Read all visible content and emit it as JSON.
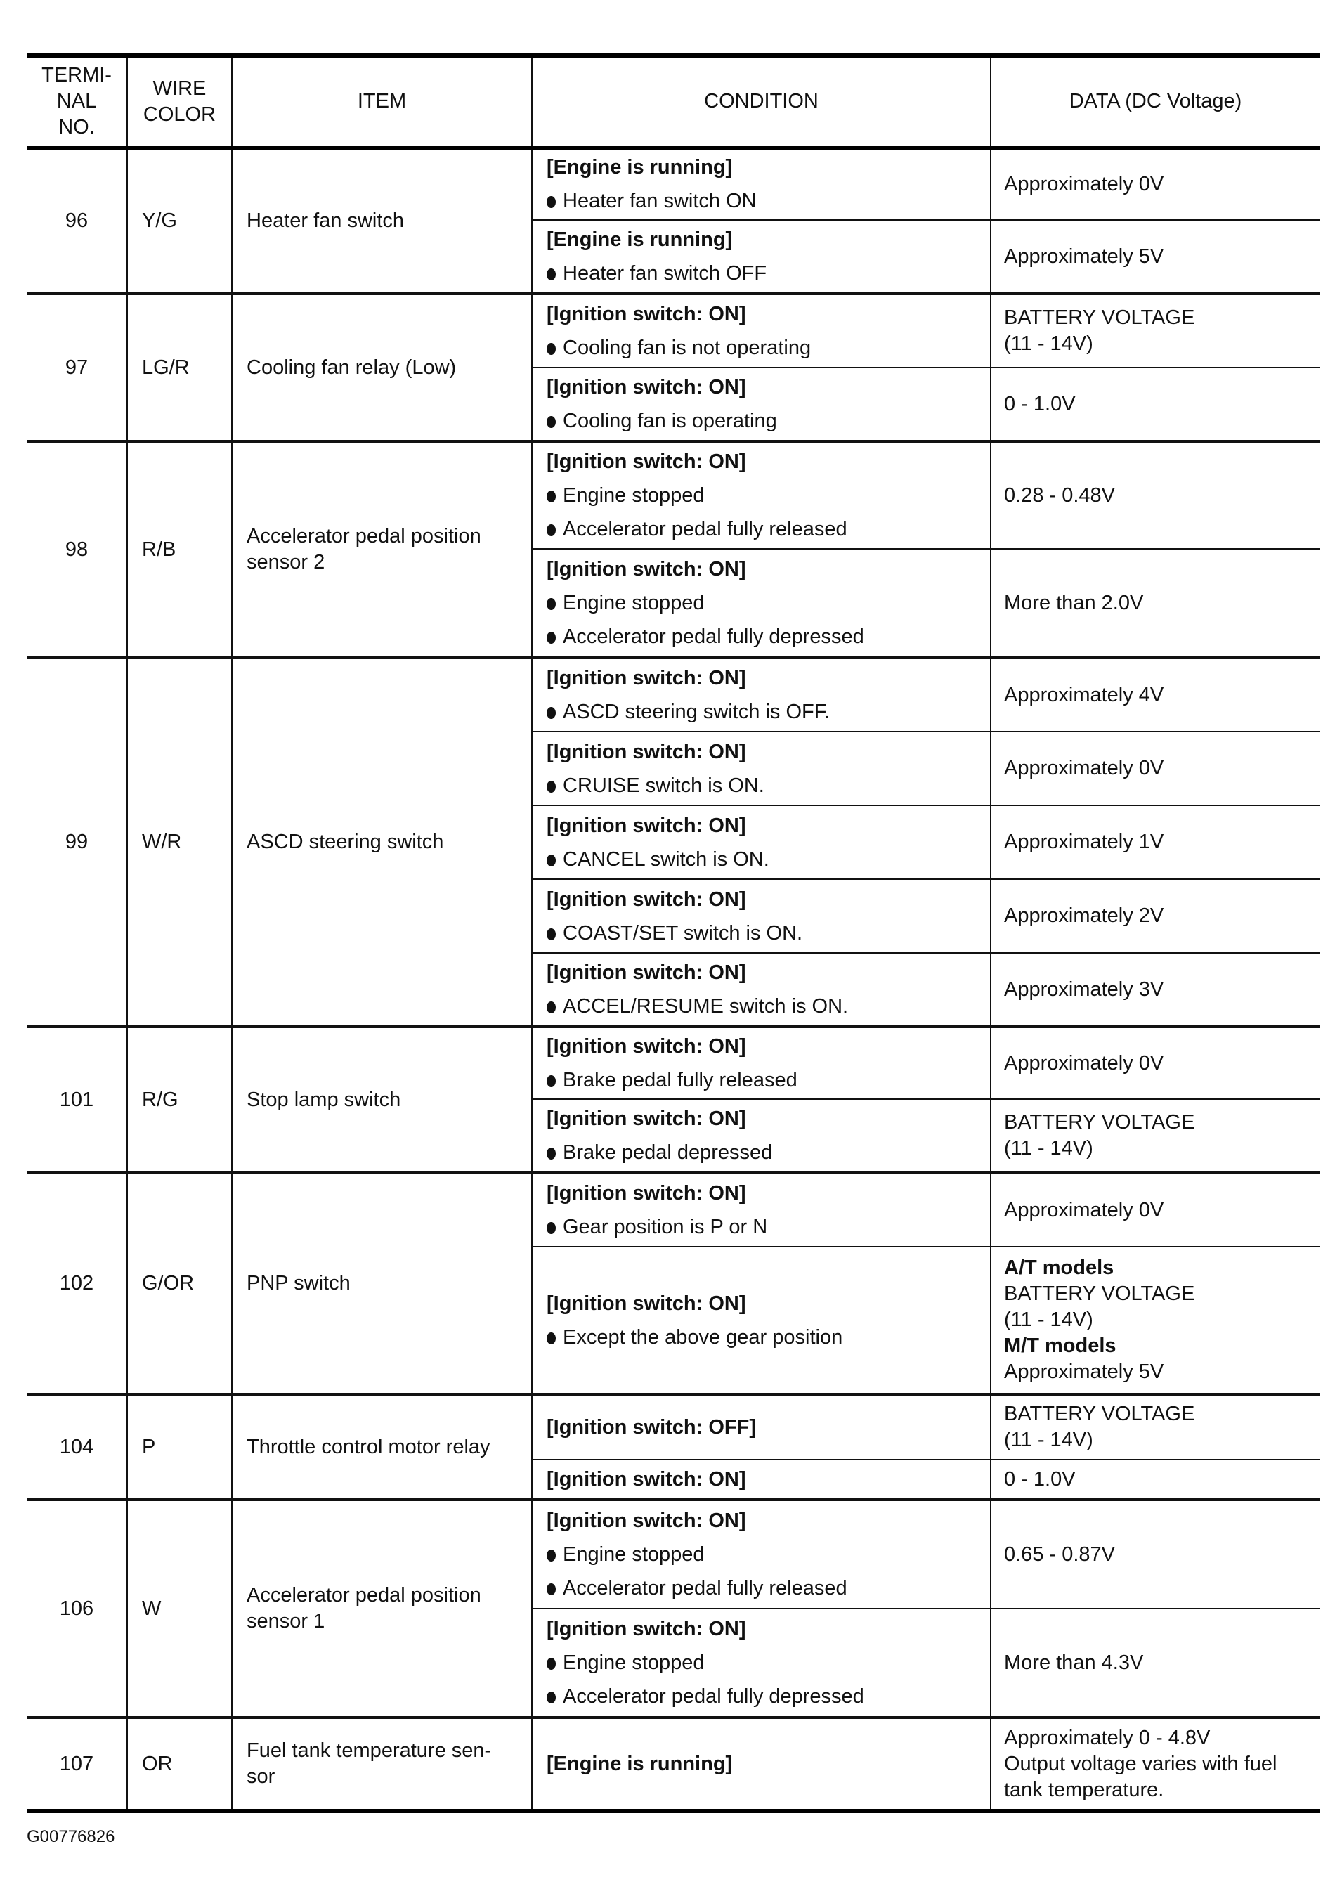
{
  "headers": {
    "terminal": [
      "TERMI-",
      "NAL",
      "NO."
    ],
    "wire": [
      "WIRE",
      "COLOR"
    ],
    "item": "ITEM",
    "condition": "CONDITION",
    "data": "DATA (DC Voltage)"
  },
  "rows": [
    {
      "terminal": "96",
      "wire": "Y/G",
      "item": [
        "Heater fan switch"
      ],
      "conditions": [
        {
          "header": "[Engine is running]",
          "bullets": [
            "Heater fan switch ON"
          ],
          "data": [
            {
              "text": "Approximately 0V"
            }
          ]
        },
        {
          "header": "[Engine is running]",
          "bullets": [
            "Heater fan switch OFF"
          ],
          "data": [
            {
              "text": "Approximately 5V"
            }
          ]
        }
      ]
    },
    {
      "terminal": "97",
      "wire": "LG/R",
      "item": [
        "Cooling fan relay (Low)"
      ],
      "conditions": [
        {
          "header": "[Ignition switch: ON]",
          "bullets": [
            "Cooling fan is not operating"
          ],
          "data": [
            {
              "text": "BATTERY VOLTAGE"
            },
            {
              "text": "(11 - 14V)"
            }
          ]
        },
        {
          "header": "[Ignition switch: ON]",
          "bullets": [
            "Cooling fan is operating"
          ],
          "data": [
            {
              "text": "0 - 1.0V"
            }
          ]
        }
      ]
    },
    {
      "terminal": "98",
      "wire": "R/B",
      "item": [
        "Accelerator pedal position",
        "sensor 2"
      ],
      "conditions": [
        {
          "header": "[Ignition switch: ON]",
          "bullets": [
            "Engine stopped",
            "Accelerator pedal fully released"
          ],
          "data": [
            {
              "text": "0.28 - 0.48V"
            }
          ]
        },
        {
          "header": "[Ignition switch: ON]",
          "bullets": [
            "Engine stopped",
            "Accelerator pedal fully depressed"
          ],
          "data": [
            {
              "text": "More than 2.0V"
            }
          ]
        }
      ]
    },
    {
      "terminal": "99",
      "wire": "W/R",
      "item": [
        "ASCD steering switch"
      ],
      "conditions": [
        {
          "header": "[Ignition switch: ON]",
          "bullets": [
            "ASCD steering switch is OFF."
          ],
          "data": [
            {
              "text": "Approximately 4V"
            }
          ]
        },
        {
          "header": "[Ignition switch: ON]",
          "bullets": [
            "CRUISE switch is ON."
          ],
          "data": [
            {
              "text": "Approximately 0V"
            }
          ]
        },
        {
          "header": "[Ignition switch: ON]",
          "bullets": [
            "CANCEL switch is ON."
          ],
          "data": [
            {
              "text": "Approximately 1V"
            }
          ]
        },
        {
          "header": "[Ignition switch: ON]",
          "bullets": [
            "COAST/SET switch is ON."
          ],
          "data": [
            {
              "text": "Approximately 2V"
            }
          ]
        },
        {
          "header": "[Ignition switch: ON]",
          "bullets": [
            "ACCEL/RESUME switch is ON."
          ],
          "data": [
            {
              "text": "Approximately 3V"
            }
          ]
        }
      ]
    },
    {
      "terminal": "101",
      "wire": "R/G",
      "item": [
        "Stop lamp switch"
      ],
      "conditions": [
        {
          "header": "[Ignition switch: ON]",
          "bullets": [
            "Brake pedal fully released"
          ],
          "data": [
            {
              "text": "Approximately 0V"
            }
          ]
        },
        {
          "header": "[Ignition switch: ON]",
          "bullets": [
            "Brake pedal depressed"
          ],
          "data": [
            {
              "text": "BATTERY VOLTAGE"
            },
            {
              "text": "(11 - 14V)"
            }
          ]
        }
      ]
    },
    {
      "terminal": "102",
      "wire": "G/OR",
      "item": [
        "PNP switch"
      ],
      "conditions": [
        {
          "header": "[Ignition switch: ON]",
          "bullets": [
            "Gear position is P or N"
          ],
          "data": [
            {
              "text": "Approximately 0V"
            }
          ]
        },
        {
          "header": "[Ignition switch: ON]",
          "bullets": [
            "Except the above gear position"
          ],
          "data": [
            {
              "text": "A/T models",
              "bold": true
            },
            {
              "text": "BATTERY VOLTAGE"
            },
            {
              "text": "(11 - 14V)"
            },
            {
              "text": "M/T models",
              "bold": true
            },
            {
              "text": "Approximately 5V"
            }
          ]
        }
      ]
    },
    {
      "terminal": "104",
      "wire": "P",
      "item": [
        "Throttle control motor relay"
      ],
      "conditions": [
        {
          "header": "[Ignition switch: OFF]",
          "bullets": [],
          "data": [
            {
              "text": "BATTERY VOLTAGE"
            },
            {
              "text": "(11 - 14V)"
            }
          ]
        },
        {
          "header": "[Ignition switch: ON]",
          "bullets": [],
          "data": [
            {
              "text": "0 - 1.0V"
            }
          ]
        }
      ]
    },
    {
      "terminal": "106",
      "wire": "W",
      "item": [
        "Accelerator pedal position",
        "sensor 1"
      ],
      "conditions": [
        {
          "header": "[Ignition switch: ON]",
          "bullets": [
            "Engine stopped",
            "Accelerator pedal fully released"
          ],
          "data": [
            {
              "text": "0.65 - 0.87V"
            }
          ]
        },
        {
          "header": "[Ignition switch: ON]",
          "bullets": [
            "Engine stopped",
            "Accelerator pedal fully depressed"
          ],
          "data": [
            {
              "text": "More than 4.3V"
            }
          ]
        }
      ]
    },
    {
      "terminal": "107",
      "wire": "OR",
      "item": [
        "Fuel tank temperature sen-",
        "sor"
      ],
      "conditions": [
        {
          "header": "[Engine is running]",
          "bullets": [],
          "data": [
            {
              "text": "Approximately 0 - 4.8V"
            },
            {
              "text": " Output voltage varies with fuel"
            },
            {
              "text": "tank temperature."
            }
          ]
        }
      ]
    }
  ],
  "figure_code": "G00776826"
}
